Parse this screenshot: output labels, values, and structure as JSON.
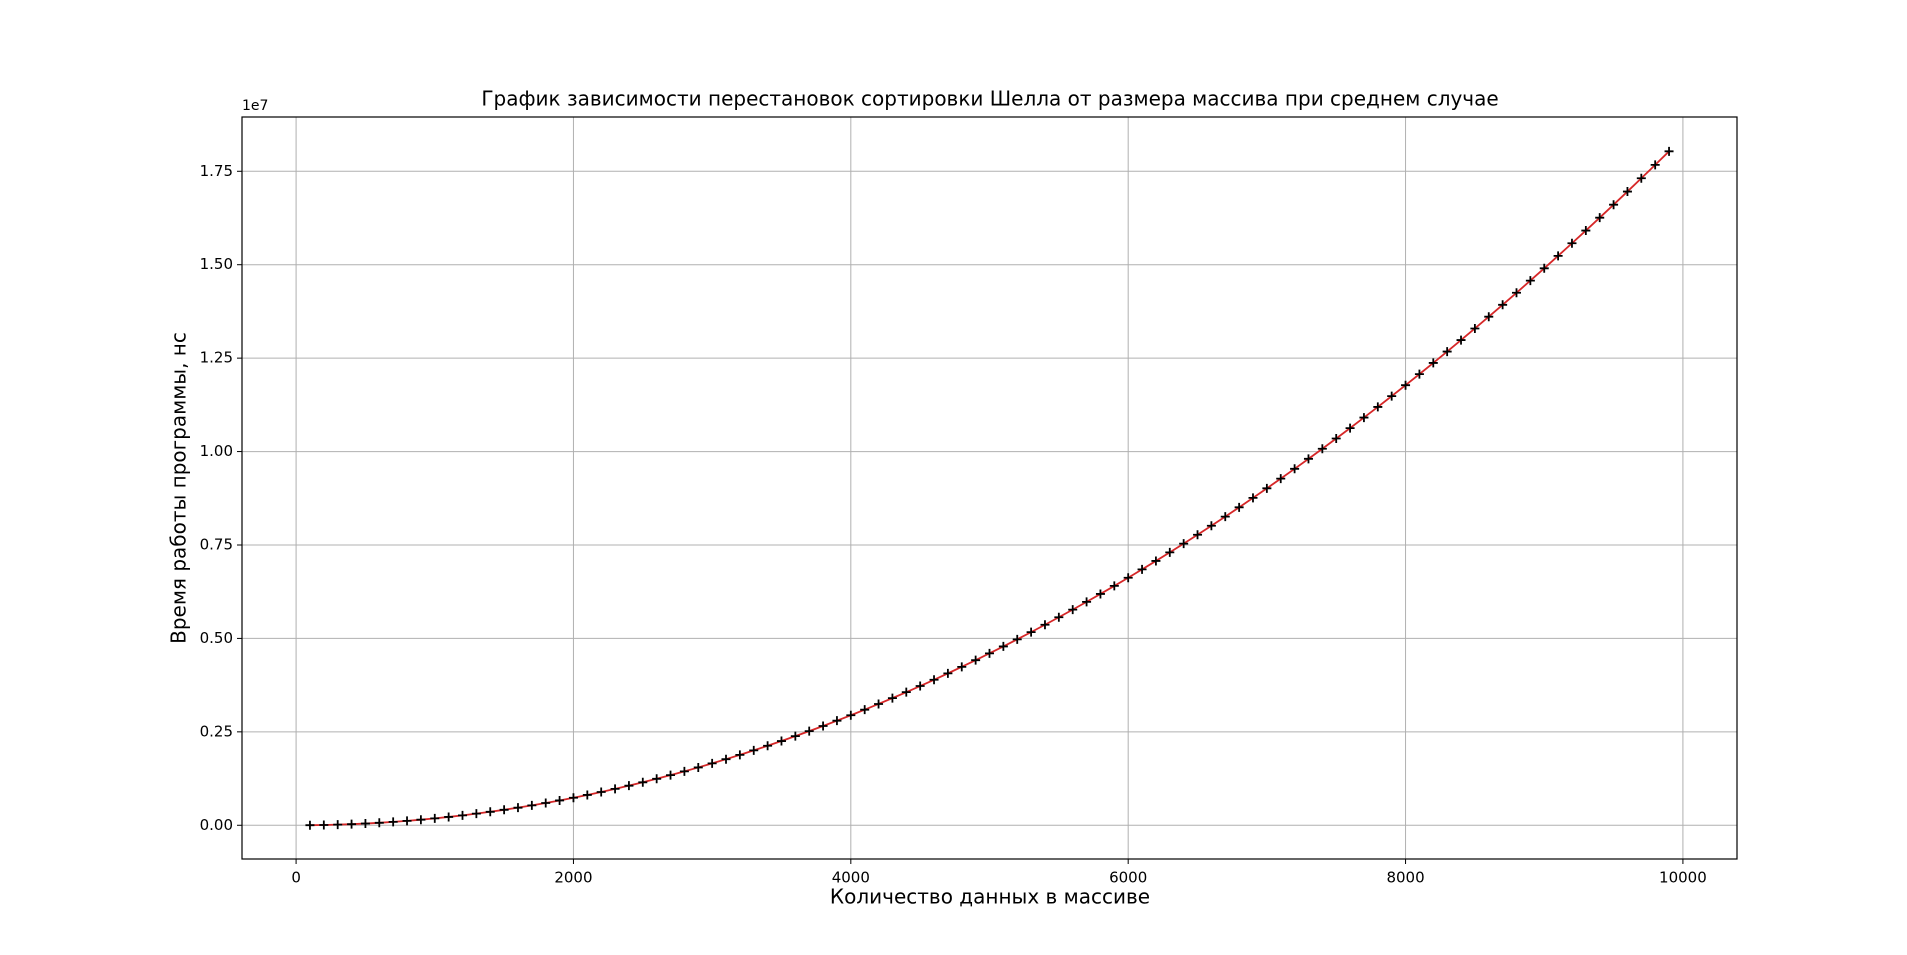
{
  "chart_data": {
    "type": "line",
    "title": "График зависимости перестановок сортировки Шелла от размера массива при среднем случае",
    "x_label": "Количество данных в массиве",
    "y_label": "Время работы программы, нс",
    "y_offset_label": "1e7",
    "x": [
      100,
      200,
      300,
      400,
      500,
      600,
      700,
      800,
      900,
      1000,
      1100,
      1200,
      1300,
      1400,
      1500,
      1600,
      1700,
      1800,
      1900,
      2000,
      2100,
      2200,
      2300,
      2400,
      2500,
      2600,
      2700,
      2800,
      2900,
      3000,
      3100,
      3200,
      3300,
      3400,
      3500,
      3600,
      3700,
      3800,
      3900,
      4000,
      4100,
      4200,
      4300,
      4400,
      4500,
      4600,
      4700,
      4800,
      4900,
      5000,
      5100,
      5200,
      5300,
      5400,
      5500,
      5600,
      5700,
      5800,
      5900,
      6000,
      6100,
      6200,
      6300,
      6400,
      6500,
      6600,
      6700,
      6800,
      6900,
      7000,
      7100,
      7200,
      7300,
      7400,
      7500,
      7600,
      7700,
      7800,
      7900,
      8000,
      8100,
      8200,
      8300,
      8400,
      8500,
      8600,
      8700,
      8800,
      8900,
      9000,
      9100,
      9200,
      9300,
      9400,
      9500,
      9600,
      9700,
      9800,
      9900
    ],
    "series": [
      {
        "color": "#d62728",
        "marker_color": "#000000",
        "marker": "+",
        "values": [
          1840,
          7360,
          16560,
          29440,
          46000,
          66240,
          90160,
          117760,
          149040,
          184000,
          222640,
          264960,
          310960,
          360640,
          414000,
          471040,
          531760,
          596160,
          664240,
          736000,
          811440,
          890560,
          973360,
          1059840,
          1150000,
          1243840,
          1341360,
          1442560,
          1547440,
          1656000,
          1768240,
          1884160,
          2003760,
          2127040,
          2254000,
          2384640,
          2518960,
          2656960,
          2798640,
          2944000,
          3093040,
          3245760,
          3402160,
          3562240,
          3726000,
          3893440,
          4064560,
          4239360,
          4417840,
          4600000,
          4785840,
          4975360,
          5168560,
          5365440,
          5566000,
          5770240,
          5978160,
          6189760,
          6405040,
          6624000,
          6846640,
          7072960,
          7302960,
          7536640,
          7774000,
          8015040,
          8259760,
          8508160,
          8760240,
          9016000,
          9275440,
          9538560,
          9805360,
          10075840,
          10350000,
          10627840,
          10909360,
          11194560,
          11483440,
          11776000,
          12072240,
          12372160,
          12675760,
          12983040,
          13294000,
          13608640,
          13926960,
          14248960,
          14574640,
          14904000,
          15237040,
          15573760,
          15914160,
          16258240,
          16606000,
          16957440,
          17312560,
          17671360,
          18033840
        ]
      }
    ],
    "xlim": [
      -390,
      10390
    ],
    "ylim": [
      -902500,
      18952500
    ],
    "xticks": [
      0,
      2000,
      4000,
      6000,
      8000,
      10000
    ],
    "yticks": [
      {
        "value": 0,
        "label": "0.00"
      },
      {
        "value": 2500000,
        "label": "0.25"
      },
      {
        "value": 5000000,
        "label": "0.50"
      },
      {
        "value": 7500000,
        "label": "0.75"
      },
      {
        "value": 10000000,
        "label": "1.00"
      },
      {
        "value": 12500000,
        "label": "1.25"
      },
      {
        "value": 15000000,
        "label": "1.50"
      },
      {
        "value": 17500000,
        "label": "1.75"
      }
    ],
    "grid": true
  }
}
